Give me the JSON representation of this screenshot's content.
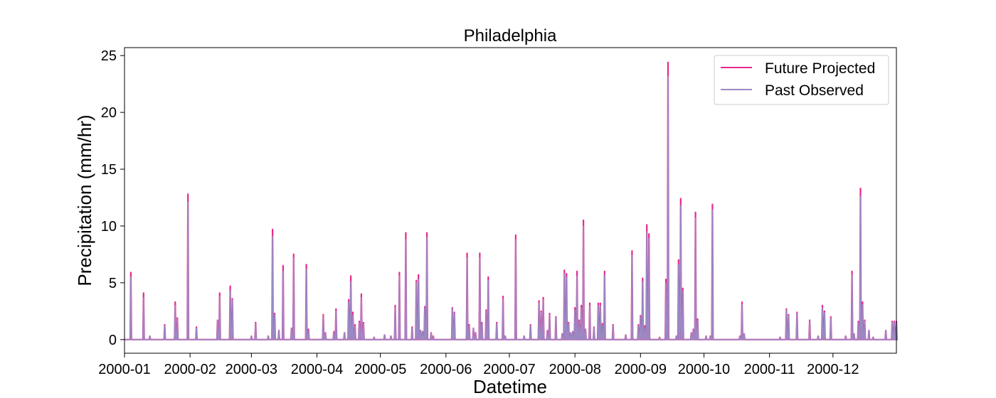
{
  "chart_data": {
    "type": "line",
    "title": "Philadelphia",
    "xlabel": "Datetime",
    "ylabel": "Precipitation (mm/hr)",
    "x_range": [
      "2000-01-01",
      "2000-12-31"
    ],
    "ylim": [
      -1.2,
      25.7
    ],
    "x_ticks": [
      "2000-01",
      "2000-02",
      "2000-03",
      "2000-04",
      "2000-05",
      "2000-06",
      "2000-07",
      "2000-08",
      "2000-09",
      "2000-10",
      "2000-11",
      "2000-12"
    ],
    "y_ticks": [
      0,
      5,
      10,
      15,
      20,
      25
    ],
    "grid": false,
    "legend_position": "top-right",
    "series": [
      {
        "name": "Future Projected",
        "color": "#e7298a",
        "points": [
          [
            "2000-01-04",
            5.9
          ],
          [
            "2000-01-10",
            4.1
          ],
          [
            "2000-01-13",
            0.3
          ],
          [
            "2000-01-20",
            1.3
          ],
          [
            "2000-01-25",
            3.3
          ],
          [
            "2000-01-26",
            1.9
          ],
          [
            "2000-01-31",
            12.8
          ],
          [
            "2000-02-04",
            1.1
          ],
          [
            "2000-02-14",
            1.7
          ],
          [
            "2000-02-15",
            4.1
          ],
          [
            "2000-02-20",
            4.7
          ],
          [
            "2000-02-21",
            3.6
          ],
          [
            "2000-03-01",
            0.3
          ],
          [
            "2000-03-03",
            1.5
          ],
          [
            "2000-03-09",
            0.3
          ],
          [
            "2000-03-11",
            9.7
          ],
          [
            "2000-03-12",
            2.3
          ],
          [
            "2000-03-14",
            0.8
          ],
          [
            "2000-03-16",
            6.5
          ],
          [
            "2000-03-20",
            1.0
          ],
          [
            "2000-03-21",
            7.5
          ],
          [
            "2000-03-27",
            6.6
          ],
          [
            "2000-03-28",
            0.9
          ],
          [
            "2000-04-04",
            2.2
          ],
          [
            "2000-04-05",
            0.6
          ],
          [
            "2000-04-09",
            0.7
          ],
          [
            "2000-04-10",
            2.7
          ],
          [
            "2000-04-14",
            0.6
          ],
          [
            "2000-04-16",
            3.5
          ],
          [
            "2000-04-17",
            5.6
          ],
          [
            "2000-04-18",
            2.4
          ],
          [
            "2000-04-19",
            1.3
          ],
          [
            "2000-04-21",
            1.6
          ],
          [
            "2000-04-22",
            4.0
          ],
          [
            "2000-04-23",
            1.5
          ],
          [
            "2000-04-28",
            0.2
          ],
          [
            "2000-05-03",
            0.4
          ],
          [
            "2000-05-06",
            0.3
          ],
          [
            "2000-05-08",
            3.0
          ],
          [
            "2000-05-10",
            5.9
          ],
          [
            "2000-05-13",
            9.4
          ],
          [
            "2000-05-16",
            1.1
          ],
          [
            "2000-05-18",
            5.2
          ],
          [
            "2000-05-19",
            5.7
          ],
          [
            "2000-05-20",
            0.8
          ],
          [
            "2000-05-21",
            0.7
          ],
          [
            "2000-05-22",
            2.9
          ],
          [
            "2000-05-23",
            9.4
          ],
          [
            "2000-05-25",
            0.6
          ],
          [
            "2000-05-26",
            0.3
          ],
          [
            "2000-06-04",
            2.8
          ],
          [
            "2000-06-05",
            2.4
          ],
          [
            "2000-06-11",
            7.6
          ],
          [
            "2000-06-12",
            1.3
          ],
          [
            "2000-06-14",
            1.0
          ],
          [
            "2000-06-15",
            0.6
          ],
          [
            "2000-06-17",
            7.6
          ],
          [
            "2000-06-18",
            1.5
          ],
          [
            "2000-06-20",
            2.6
          ],
          [
            "2000-06-21",
            5.5
          ],
          [
            "2000-06-25",
            1.5
          ],
          [
            "2000-06-28",
            3.8
          ],
          [
            "2000-06-29",
            0.3
          ],
          [
            "2000-07-04",
            9.2
          ],
          [
            "2000-07-08",
            0.3
          ],
          [
            "2000-07-11",
            1.3
          ],
          [
            "2000-07-15",
            3.4
          ],
          [
            "2000-07-16",
            2.5
          ],
          [
            "2000-07-17",
            3.7
          ],
          [
            "2000-07-19",
            0.8
          ],
          [
            "2000-07-20",
            2.3
          ],
          [
            "2000-07-23",
            2.0
          ],
          [
            "2000-07-26",
            0.5
          ],
          [
            "2000-07-27",
            6.1
          ],
          [
            "2000-07-28",
            5.8
          ],
          [
            "2000-07-29",
            1.5
          ],
          [
            "2000-07-30",
            0.6
          ],
          [
            "2000-07-31",
            0.7
          ],
          [
            "2000-08-01",
            2.8
          ],
          [
            "2000-08-02",
            6.0
          ],
          [
            "2000-08-03",
            1.7
          ],
          [
            "2000-08-04",
            3.0
          ],
          [
            "2000-08-05",
            10.5
          ],
          [
            "2000-08-06",
            0.9
          ],
          [
            "2000-08-08",
            3.2
          ],
          [
            "2000-08-10",
            1.1
          ],
          [
            "2000-08-12",
            3.2
          ],
          [
            "2000-08-13",
            3.2
          ],
          [
            "2000-08-14",
            1.4
          ],
          [
            "2000-08-15",
            6.0
          ],
          [
            "2000-08-19",
            1.3
          ],
          [
            "2000-08-25",
            0.4
          ],
          [
            "2000-08-28",
            7.8
          ],
          [
            "2000-08-31",
            1.3
          ],
          [
            "2000-09-01",
            2.1
          ],
          [
            "2000-09-02",
            5.4
          ],
          [
            "2000-09-03",
            1.2
          ],
          [
            "2000-09-04",
            10.1
          ],
          [
            "2000-09-05",
            9.3
          ],
          [
            "2000-09-10",
            0.2
          ],
          [
            "2000-09-13",
            5.3
          ],
          [
            "2000-09-14",
            24.4
          ],
          [
            "2000-09-18",
            0.3
          ],
          [
            "2000-09-19",
            7.0
          ],
          [
            "2000-09-20",
            12.4
          ],
          [
            "2000-09-21",
            4.5
          ],
          [
            "2000-09-25",
            0.6
          ],
          [
            "2000-09-26",
            0.9
          ],
          [
            "2000-09-27",
            11.2
          ],
          [
            "2000-09-28",
            1.8
          ],
          [
            "2000-10-02",
            0.3
          ],
          [
            "2000-10-04",
            0.3
          ],
          [
            "2000-10-05",
            11.9
          ],
          [
            "2000-10-18",
            0.3
          ],
          [
            "2000-10-19",
            3.3
          ],
          [
            "2000-10-20",
            0.5
          ],
          [
            "2000-11-06",
            0.2
          ],
          [
            "2000-11-09",
            2.7
          ],
          [
            "2000-11-10",
            2.2
          ],
          [
            "2000-11-14",
            2.4
          ],
          [
            "2000-11-20",
            1.7
          ],
          [
            "2000-11-24",
            0.3
          ],
          [
            "2000-11-26",
            3.0
          ],
          [
            "2000-11-27",
            2.5
          ],
          [
            "2000-11-30",
            2.0
          ],
          [
            "2000-12-07",
            0.3
          ],
          [
            "2000-12-10",
            6.0
          ],
          [
            "2000-12-11",
            0.5
          ],
          [
            "2000-12-13",
            1.6
          ],
          [
            "2000-12-14",
            13.3
          ],
          [
            "2000-12-15",
            3.3
          ],
          [
            "2000-12-16",
            1.7
          ],
          [
            "2000-12-18",
            0.8
          ],
          [
            "2000-12-20",
            0.2
          ],
          [
            "2000-12-26",
            0.8
          ],
          [
            "2000-12-29",
            1.6
          ],
          [
            "2000-12-30",
            1.6
          ],
          [
            "2000-12-31",
            1.6
          ]
        ]
      },
      {
        "name": "Past Observed",
        "color": "#9b89c4",
        "points": [
          [
            "2000-01-04",
            5.5
          ],
          [
            "2000-01-10",
            3.7
          ],
          [
            "2000-01-13",
            0.3
          ],
          [
            "2000-01-20",
            1.2
          ],
          [
            "2000-01-25",
            3.0
          ],
          [
            "2000-01-26",
            1.8
          ],
          [
            "2000-01-31",
            12.1
          ],
          [
            "2000-02-04",
            1.0
          ],
          [
            "2000-02-14",
            1.7
          ],
          [
            "2000-02-15",
            3.8
          ],
          [
            "2000-02-20",
            4.3
          ],
          [
            "2000-02-21",
            3.5
          ],
          [
            "2000-03-01",
            0.3
          ],
          [
            "2000-03-03",
            1.4
          ],
          [
            "2000-03-09",
            0.3
          ],
          [
            "2000-03-11",
            9.1
          ],
          [
            "2000-03-12",
            2.2
          ],
          [
            "2000-03-14",
            0.8
          ],
          [
            "2000-03-16",
            6.0
          ],
          [
            "2000-03-20",
            1.0
          ],
          [
            "2000-03-21",
            7.2
          ],
          [
            "2000-03-27",
            6.2
          ],
          [
            "2000-03-28",
            0.8
          ],
          [
            "2000-04-04",
            2.1
          ],
          [
            "2000-04-05",
            0.6
          ],
          [
            "2000-04-09",
            0.7
          ],
          [
            "2000-04-10",
            2.5
          ],
          [
            "2000-04-14",
            0.6
          ],
          [
            "2000-04-16",
            3.3
          ],
          [
            "2000-04-17",
            5.1
          ],
          [
            "2000-04-18",
            2.2
          ],
          [
            "2000-04-19",
            1.2
          ],
          [
            "2000-04-21",
            1.5
          ],
          [
            "2000-04-22",
            3.7
          ],
          [
            "2000-04-23",
            1.4
          ],
          [
            "2000-04-28",
            0.2
          ],
          [
            "2000-05-03",
            0.4
          ],
          [
            "2000-05-06",
            0.3
          ],
          [
            "2000-05-08",
            2.8
          ],
          [
            "2000-05-10",
            5.6
          ],
          [
            "2000-05-13",
            8.8
          ],
          [
            "2000-05-16",
            1.0
          ],
          [
            "2000-05-18",
            5.0
          ],
          [
            "2000-05-19",
            5.3
          ],
          [
            "2000-05-20",
            0.8
          ],
          [
            "2000-05-21",
            0.7
          ],
          [
            "2000-05-22",
            2.8
          ],
          [
            "2000-05-23",
            9.0
          ],
          [
            "2000-05-25",
            0.6
          ],
          [
            "2000-05-26",
            0.3
          ],
          [
            "2000-06-04",
            2.7
          ],
          [
            "2000-06-05",
            2.3
          ],
          [
            "2000-06-11",
            7.2
          ],
          [
            "2000-06-12",
            1.2
          ],
          [
            "2000-06-14",
            1.0
          ],
          [
            "2000-06-15",
            0.6
          ],
          [
            "2000-06-17",
            7.2
          ],
          [
            "2000-06-18",
            1.4
          ],
          [
            "2000-06-20",
            2.5
          ],
          [
            "2000-06-21",
            5.2
          ],
          [
            "2000-06-25",
            1.4
          ],
          [
            "2000-06-28",
            3.6
          ],
          [
            "2000-06-29",
            0.3
          ],
          [
            "2000-07-04",
            8.8
          ],
          [
            "2000-07-08",
            0.3
          ],
          [
            "2000-07-11",
            1.2
          ],
          [
            "2000-07-15",
            3.2
          ],
          [
            "2000-07-16",
            2.4
          ],
          [
            "2000-07-17",
            3.5
          ],
          [
            "2000-07-19",
            0.8
          ],
          [
            "2000-07-20",
            2.2
          ],
          [
            "2000-07-23",
            1.9
          ],
          [
            "2000-07-26",
            0.5
          ],
          [
            "2000-07-27",
            5.8
          ],
          [
            "2000-07-28",
            5.5
          ],
          [
            "2000-07-29",
            1.4
          ],
          [
            "2000-07-30",
            0.6
          ],
          [
            "2000-07-31",
            0.7
          ],
          [
            "2000-08-01",
            2.6
          ],
          [
            "2000-08-02",
            5.6
          ],
          [
            "2000-08-03",
            1.6
          ],
          [
            "2000-08-04",
            2.8
          ],
          [
            "2000-08-05",
            10.0
          ],
          [
            "2000-08-06",
            0.9
          ],
          [
            "2000-08-08",
            3.0
          ],
          [
            "2000-08-10",
            1.1
          ],
          [
            "2000-08-12",
            3.0
          ],
          [
            "2000-08-13",
            3.0
          ],
          [
            "2000-08-14",
            1.3
          ],
          [
            "2000-08-15",
            5.7
          ],
          [
            "2000-08-19",
            1.2
          ],
          [
            "2000-08-25",
            0.4
          ],
          [
            "2000-08-28",
            7.4
          ],
          [
            "2000-08-31",
            1.2
          ],
          [
            "2000-09-01",
            2.0
          ],
          [
            "2000-09-02",
            5.1
          ],
          [
            "2000-09-03",
            1.1
          ],
          [
            "2000-09-04",
            9.5
          ],
          [
            "2000-09-05",
            8.9
          ],
          [
            "2000-09-10",
            0.2
          ],
          [
            "2000-09-13",
            5.0
          ],
          [
            "2000-09-14",
            23.2
          ],
          [
            "2000-09-18",
            0.3
          ],
          [
            "2000-09-19",
            6.6
          ],
          [
            "2000-09-20",
            11.8
          ],
          [
            "2000-09-21",
            4.3
          ],
          [
            "2000-09-25",
            0.6
          ],
          [
            "2000-09-26",
            0.9
          ],
          [
            "2000-09-27",
            10.7
          ],
          [
            "2000-09-28",
            1.7
          ],
          [
            "2000-10-02",
            0.3
          ],
          [
            "2000-10-04",
            0.3
          ],
          [
            "2000-10-05",
            11.4
          ],
          [
            "2000-10-18",
            0.3
          ],
          [
            "2000-10-19",
            3.1
          ],
          [
            "2000-10-20",
            0.5
          ],
          [
            "2000-11-06",
            0.2
          ],
          [
            "2000-11-09",
            2.6
          ],
          [
            "2000-11-10",
            2.1
          ],
          [
            "2000-11-14",
            2.3
          ],
          [
            "2000-11-20",
            1.6
          ],
          [
            "2000-11-24",
            0.3
          ],
          [
            "2000-11-26",
            2.8
          ],
          [
            "2000-11-27",
            2.4
          ],
          [
            "2000-11-30",
            1.9
          ],
          [
            "2000-12-07",
            0.3
          ],
          [
            "2000-12-10",
            5.7
          ],
          [
            "2000-12-11",
            0.5
          ],
          [
            "2000-12-13",
            1.5
          ],
          [
            "2000-12-14",
            12.6
          ],
          [
            "2000-12-15",
            3.1
          ],
          [
            "2000-12-16",
            1.6
          ],
          [
            "2000-12-18",
            0.8
          ],
          [
            "2000-12-20",
            0.2
          ],
          [
            "2000-12-26",
            0.8
          ],
          [
            "2000-12-29",
            1.5
          ],
          [
            "2000-12-30",
            1.5
          ],
          [
            "2000-12-31",
            1.5
          ]
        ]
      }
    ]
  }
}
